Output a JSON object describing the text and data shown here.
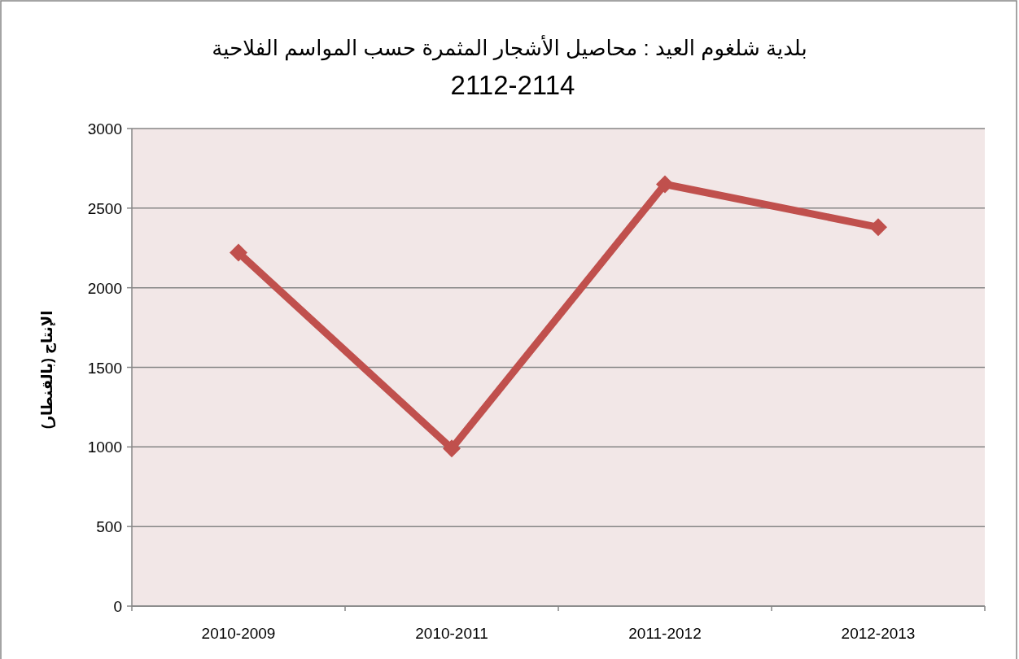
{
  "chart_data": {
    "type": "line",
    "title": "بلدية شلغوم العيد : محاصيل الأشجار المثمرة حسب المواسم الفلاحية",
    "subtitle": "2112-2114",
    "ylabel": "الإنتاج (بالقنطار)",
    "categories": [
      "2010-2009",
      "2010-2011",
      "2011-2012",
      "2012-2013"
    ],
    "series": [
      {
        "color": "#c0504d",
        "values": [
          2220,
          990,
          2650,
          2380
        ]
      }
    ],
    "ylim": [
      0,
      3000
    ],
    "yticks": [
      0,
      500,
      1000,
      1500,
      2000,
      2500,
      3000
    ],
    "grid": "y",
    "marker": "diamond",
    "line_style": "solid"
  }
}
